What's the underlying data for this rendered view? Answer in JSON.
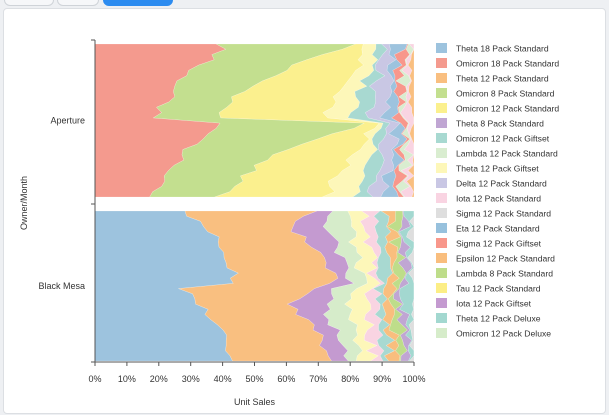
{
  "chart_data": {
    "type": "area",
    "stacked": "percent",
    "orientation": "horizontal",
    "xlabel": "Unit Sales",
    "ylabel": "Owner/Month",
    "xlim": [
      0,
      100
    ],
    "x_ticks": [
      "0%",
      "10%",
      "20%",
      "30%",
      "40%",
      "50%",
      "60%",
      "70%",
      "80%",
      "90%",
      "100%"
    ],
    "grid": false,
    "legend_position": "right",
    "categories": [
      "Aperture",
      "Black Mesa"
    ],
    "steps": 30,
    "series": [
      {
        "name": "Theta 18 Pack Standard",
        "color": "#9dc3de"
      },
      {
        "name": "Omicron 18 Pack Standard",
        "color": "#f49a8e"
      },
      {
        "name": "Theta 12 Pack Standard",
        "color": "#f9bf80"
      },
      {
        "name": "Omicron 8 Pack Standard",
        "color": "#c3df8f"
      },
      {
        "name": "Omicron 12 Pack Standard",
        "color": "#fbf08e"
      },
      {
        "name": "Theta 8 Pack Standard",
        "color": "#c0a6d3"
      },
      {
        "name": "Omicron 12 Pack Giftset",
        "color": "#a8d9d1"
      },
      {
        "name": "Lambda 12 Pack Standard",
        "color": "#d9edd0"
      },
      {
        "name": "Theta 12 Pack Giftset",
        "color": "#fdf7b9"
      },
      {
        "name": "Delta 12 Pack Standard",
        "color": "#c9c7e4"
      },
      {
        "name": "Iota 12 Pack Standard",
        "color": "#f9d4e2"
      },
      {
        "name": "Sigma 12 Pack Standard",
        "color": "#dedede"
      },
      {
        "name": "Eta 12 Pack Standard",
        "color": "#97c1dd"
      },
      {
        "name": "Sigma 12 Pack Giftset",
        "color": "#f8978b"
      },
      {
        "name": "Epsilon 12 Pack Standard",
        "color": "#f9be7e"
      },
      {
        "name": "Lambda 8 Pack Standard",
        "color": "#bedd8a"
      },
      {
        "name": "Tau 12 Pack Standard",
        "color": "#fcee86"
      },
      {
        "name": "Iota 12 Pack Giftset",
        "color": "#c49ad0"
      },
      {
        "name": "Theta 12 Pack Deluxe",
        "color": "#a3d8d0"
      },
      {
        "name": "Omicron 12 Pack Deluxe",
        "color": "#d6ecca"
      }
    ],
    "groups": [
      {
        "category": "Aperture",
        "profiles": [
          {
            "series": "Omicron 18 Pack Standard",
            "start": [
              40,
              39,
              37,
              30,
              28,
              26,
              24,
              22,
              20,
              17
            ],
            "end": [
              40,
              38,
              35,
              30,
              27,
              25,
              23,
              21,
              19,
              17
            ]
          },
          {
            "series": "Omicron 8 Pack Standard",
            "start": [
              83,
              73,
              66,
              60,
              55,
              50,
              46,
              43,
              40,
              38
            ],
            "end": [
              85,
              76,
              68,
              62,
              57,
              52,
              48,
              45,
              42,
              39
            ]
          },
          {
            "series": "Omicron 12 Pack Standard",
            "start": [
              86,
              85,
              83,
              82,
              80,
              78,
              76,
              74,
              73,
              72
            ],
            "end": [
              88,
              86,
              84,
              83,
              81,
              79,
              77,
              75,
              74,
              73
            ]
          },
          {
            "series": "Theta 12 Pack Giftset",
            "start": [
              89,
              88,
              87,
              86,
              85,
              84,
              83,
              82,
              82,
              81
            ],
            "end": [
              90,
              89,
              88,
              87,
              86,
              85,
              84,
              83,
              83,
              82
            ]
          },
          {
            "series": "Omicron 12 Pack Giftset",
            "start": [
              91,
              90,
              90,
              89,
              89,
              88,
              88,
              87,
              87,
              86
            ],
            "end": [
              92,
              91,
              90,
              90,
              89,
              89,
              88,
              88,
              87,
              87
            ]
          },
          {
            "series": "Delta 12 Pack Standard",
            "start": [
              94,
              94,
              93,
              93,
              92,
              92,
              91,
              91,
              91,
              90
            ],
            "end": [
              95,
              94,
              94,
              93,
              93,
              92,
              92,
              91,
              91,
              91
            ]
          },
          {
            "series": "Theta 18 Pack Standard",
            "start": [
              96,
              96,
              95,
              95,
              95,
              94,
              94,
              94,
              94,
              93
            ],
            "end": [
              96,
              96,
              96,
              95,
              95,
              95,
              94,
              94,
              94,
              94
            ]
          },
          {
            "series": "Sigma 12 Pack Giftset",
            "start": [
              97,
              97,
              97,
              96,
              96,
              96,
              96,
              96,
              95,
              95
            ],
            "end": [
              97,
              97,
              97,
              97,
              96,
              96,
              96,
              96,
              96,
              96
            ]
          },
          {
            "series": "Lambda 12 Pack Standard",
            "start": [
              98,
              98,
              98,
              98,
              98,
              97,
              97,
              97,
              97,
              97
            ],
            "end": [
              98,
              98,
              98,
              98,
              98,
              98,
              97,
              97,
              97,
              97
            ]
          },
          {
            "series": "Iota 12 Pack Standard",
            "start": [
              99,
              99,
              99,
              99,
              99,
              99,
              98,
              98,
              98,
              98
            ],
            "end": [
              99,
              99,
              99,
              99,
              99,
              99,
              99,
              98,
              98,
              98
            ]
          },
          {
            "series": "Theta 12 Pack Standard",
            "start": [
              100,
              100,
              100,
              100,
              100,
              100,
              100,
              100,
              100,
              100
            ],
            "end": [
              100,
              100,
              100,
              100,
              100,
              100,
              100,
              100,
              100,
              100
            ]
          }
        ]
      },
      {
        "category": "Black Mesa",
        "profiles": [
          {
            "series": "Theta 18 Pack Standard",
            "start": [
              29,
              31,
              34,
              37,
              39,
              41,
              42,
              43,
              44,
              45
            ],
            "end": [
              28,
              30,
              33,
              36,
              38,
              40,
              41,
              42,
              43,
              44
            ]
          },
          {
            "series": "Theta 12 Pack Standard",
            "start": [
              68,
              64,
              62,
              64,
              67,
              70,
              72,
              73,
              74,
              75
            ],
            "end": [
              69,
              65,
              62,
              63,
              66,
              69,
              71,
              72,
              73,
              74
            ]
          },
          {
            "series": "Iota 12 Pack Giftset",
            "start": [
              74,
              73,
              73,
              74,
              75,
              76,
              77,
              78,
              79,
              80
            ],
            "end": [
              75,
              74,
              73,
              73,
              74,
              75,
              76,
              77,
              78,
              79
            ]
          },
          {
            "series": "Omicron 12 Pack Deluxe",
            "start": [
              80,
              80,
              80,
              81,
              81,
              82,
              82,
              83,
              83,
              84
            ],
            "end": [
              81,
              80,
              80,
              80,
              81,
              81,
              82,
              82,
              83,
              83
            ]
          },
          {
            "series": "Theta 12 Pack Giftset",
            "start": [
              85,
              85,
              85,
              86,
              86,
              86,
              87,
              87,
              87,
              88
            ],
            "end": [
              85,
              85,
              85,
              85,
              86,
              86,
              86,
              87,
              87,
              87
            ]
          },
          {
            "series": "Iota 12 Pack Standard",
            "start": [
              88,
              88,
              88,
              89,
              89,
              89,
              89,
              90,
              90,
              90
            ],
            "end": [
              88,
              88,
              88,
              88,
              89,
              89,
              89,
              89,
              90,
              90
            ]
          },
          {
            "series": "Omicron 12 Pack Giftset",
            "start": [
              91,
              91,
              91,
              91,
              92,
              92,
              92,
              92,
              92,
              93
            ],
            "end": [
              91,
              91,
              91,
              91,
              91,
              92,
              92,
              92,
              92,
              92
            ]
          },
          {
            "series": "Epsilon 12 Pack Standard",
            "start": [
              93,
              93,
              93,
              94,
              94,
              94,
              94,
              94,
              94,
              95
            ],
            "end": [
              93,
              93,
              93,
              93,
              94,
              94,
              94,
              94,
              94,
              94
            ]
          },
          {
            "series": "Lambda 8 Pack Standard",
            "start": [
              95,
              95,
              95,
              95,
              96,
              96,
              96,
              96,
              96,
              96
            ],
            "end": [
              95,
              95,
              95,
              95,
              95,
              96,
              96,
              96,
              96,
              96
            ]
          },
          {
            "series": "Theta 8 Pack Standard",
            "start": [
              97,
              97,
              97,
              97,
              97,
              97,
              98,
              98,
              98,
              98
            ],
            "end": [
              97,
              97,
              97,
              97,
              97,
              97,
              97,
              98,
              98,
              98
            ]
          },
          {
            "series": "Theta 12 Pack Deluxe",
            "start": [
              99,
              99,
              99,
              99,
              99,
              99,
              99,
              99,
              99,
              99
            ],
            "end": [
              99,
              99,
              99,
              99,
              99,
              99,
              99,
              99,
              99,
              99
            ]
          },
          {
            "series": "Sigma 12 Pack Standard",
            "start": [
              100,
              100,
              100,
              100,
              100,
              100,
              100,
              100,
              100,
              100
            ],
            "end": [
              100,
              100,
              100,
              100,
              100,
              100,
              100,
              100,
              100,
              100
            ]
          }
        ]
      }
    ]
  }
}
